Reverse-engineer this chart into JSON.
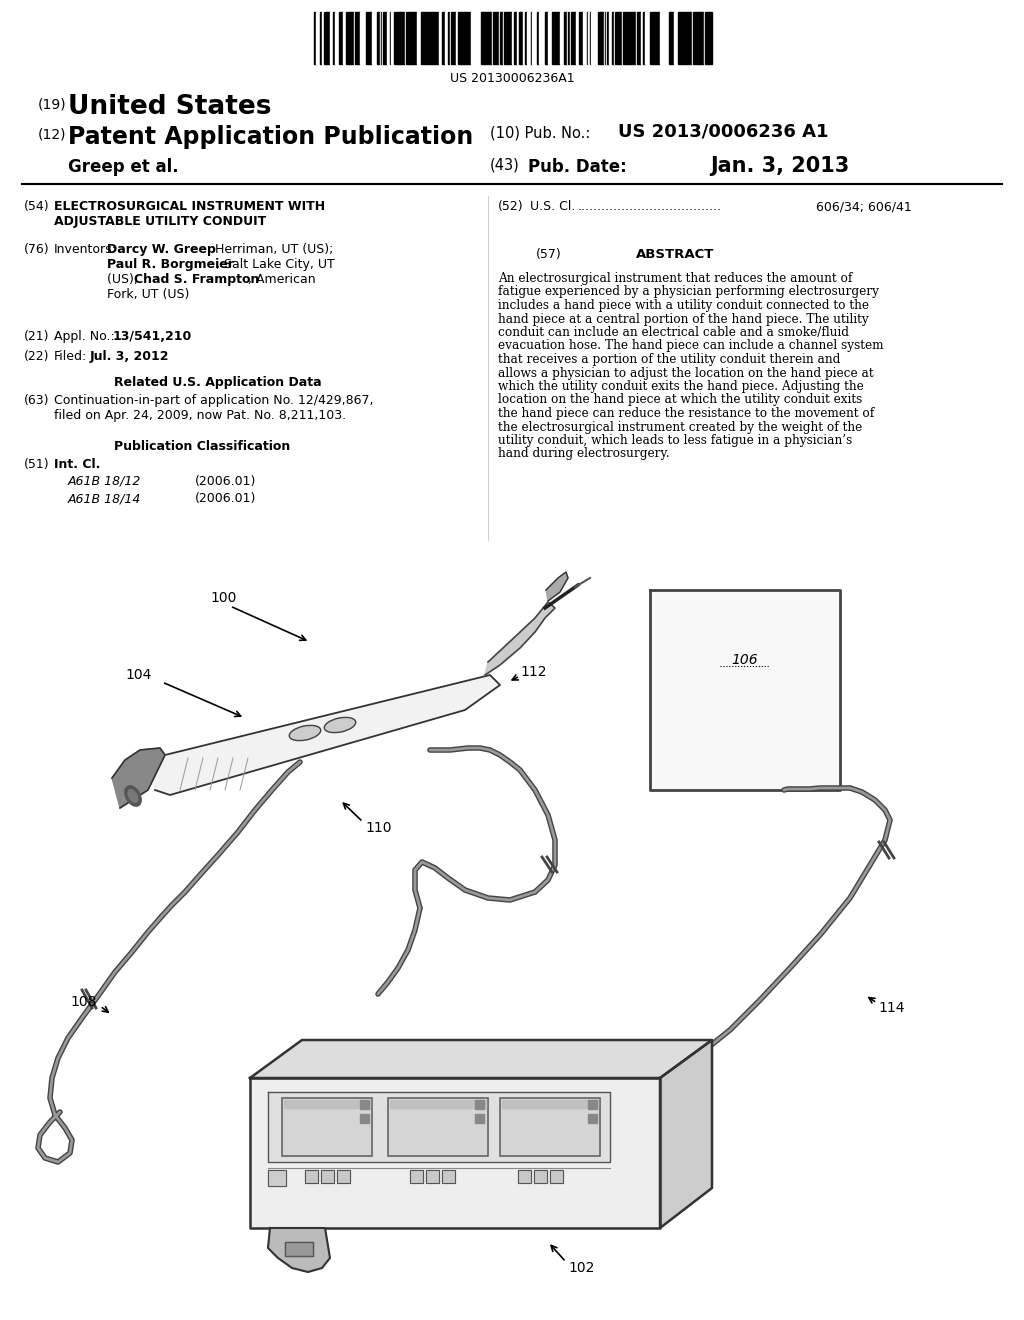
{
  "barcode_text": "US 20130006236A1",
  "pub_no": "US 2013/0006236 A1",
  "pub_date": "Jan. 3, 2013",
  "inventors_label": "Greep et al.",
  "pub_no_label": "(10) Pub. No.:",
  "pub_date_label": "(43) Pub. Date:",
  "abstract_text": "An electrosurgical instrument that reduces the amount of fatigue experienced by a physician performing electrosurgery includes a hand piece with a utility conduit connected to the hand piece at a central portion of the hand piece. The utility conduit can include an electrical cable and a smoke/fluid evacuation hose. The hand piece can include a channel system that receives a portion of the utility conduit therein and allows a physician to adjust the location on the hand piece at which the utility conduit exits the hand piece. Adjusting the location on the hand piece at which the utility conduit exits the hand piece can reduce the resistance to the movement of the electrosurgical instrument created by the weight of the utility conduit, which leads to less fatigue in a physician’s hand during electrosurgery.",
  "bg_color": "#ffffff",
  "text_color": "#000000",
  "label_100": "100",
  "label_104": "104",
  "label_110": "110",
  "label_112": "112",
  "label_106": "106",
  "label_108": "108",
  "label_114": "114",
  "label_102": "102"
}
